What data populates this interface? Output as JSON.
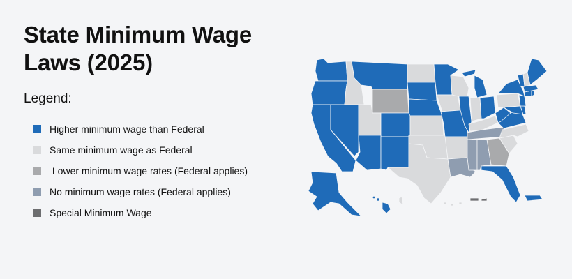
{
  "title": "State Minimum Wage Laws (2025)",
  "legend": {
    "heading": "Legend:",
    "items": [
      {
        "label": "Higher minimum wage than Federal",
        "color": "#1f6bb8"
      },
      {
        "label": "Same minimum wage as Federal",
        "color": "#d9dadc"
      },
      {
        "label": " Lower minimum wage rates (Federal applies)",
        "color": "#a9aaac"
      },
      {
        "label": "No minimum wage rates (Federal applies)",
        "color": "#8f9db0"
      },
      {
        "label": "Special Minimum Wage",
        "color": "#6d6e70"
      }
    ]
  },
  "map_colors": {
    "higher": "#1f6bb8",
    "same": "#d9dadc",
    "lower": "#a9aaac",
    "none": "#8f9db0",
    "special": "#6d6e70"
  }
}
